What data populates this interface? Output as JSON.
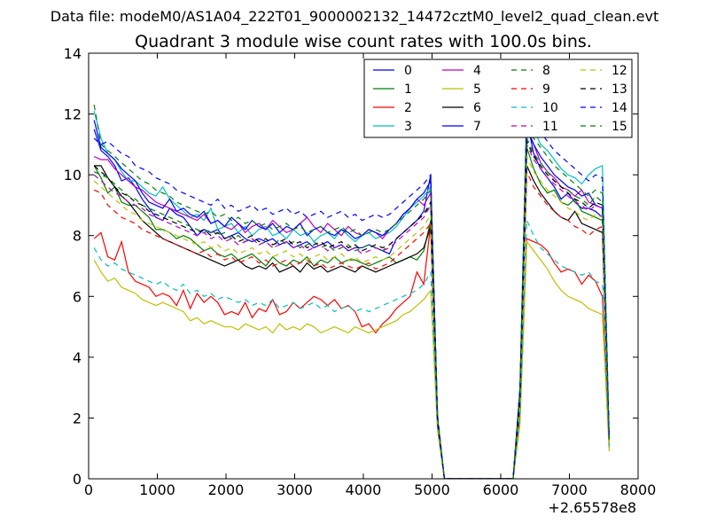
{
  "chart_data": {
    "type": "line",
    "suptitle": "Data file: modeM0/AS1A04_222T01_9000002132_14472cztM0_level2_quad_clean.evt",
    "title": "Quadrant 3 module wise count rates with 100.0s bins.",
    "xlabel": "",
    "ylabel": "",
    "x_offset_label": "+2.65578e8",
    "xlim": [
      0,
      8000
    ],
    "ylim": [
      0,
      14
    ],
    "xticks": [
      0,
      1000,
      2000,
      3000,
      4000,
      5000,
      6000,
      7000,
      8000
    ],
    "xtick_labels": [
      "0",
      "1000",
      "2000",
      "3000",
      "4000",
      "5000",
      "6000",
      "7000",
      "8000"
    ],
    "yticks": [
      0,
      2,
      4,
      6,
      8,
      10,
      12,
      14
    ],
    "ytick_labels": [
      "0",
      "2",
      "4",
      "6",
      "8",
      "10",
      "12",
      "14"
    ],
    "grid": false,
    "legend_position": "top-right",
    "legend_columns": 4,
    "x": [
      80,
      180,
      280,
      380,
      480,
      580,
      680,
      780,
      880,
      980,
      1080,
      1180,
      1280,
      1380,
      1480,
      1580,
      1680,
      1780,
      1880,
      1980,
      2080,
      2180,
      2280,
      2380,
      2480,
      2580,
      2680,
      2780,
      2880,
      2980,
      3080,
      3180,
      3280,
      3380,
      3480,
      3580,
      3680,
      3780,
      3880,
      3980,
      4080,
      4180,
      4280,
      4380,
      4480,
      4580,
      4680,
      4780,
      4880,
      4980,
      5080,
      5180,
      6180,
      6280,
      6380,
      6480,
      6580,
      6680,
      6780,
      6880,
      6980,
      7080,
      7180,
      7280,
      7380,
      7480,
      7580
    ],
    "series": [
      {
        "name": "0",
        "color": "#0000ff",
        "dash": "solid",
        "values": [
          11.5,
          10.8,
          10.6,
          10.3,
          9.8,
          9.9,
          9.6,
          9.2,
          8.9,
          8.6,
          8.5,
          8.9,
          8.7,
          8.6,
          8.3,
          8.0,
          8.2,
          8.1,
          8.2,
          7.9,
          8.0,
          8.1,
          7.9,
          7.8,
          7.9,
          7.8,
          7.9,
          7.7,
          7.8,
          7.6,
          7.7,
          7.8,
          7.6,
          7.7,
          7.8,
          7.6,
          7.7,
          7.5,
          7.6,
          7.6,
          7.7,
          7.6,
          7.5,
          7.4,
          7.9,
          8.1,
          8.3,
          8.5,
          8.8,
          10.0,
          1.9,
          0.0,
          0.0,
          2.8,
          11.8,
          10.7,
          10.2,
          9.9,
          9.6,
          9.2,
          9.4,
          9.1,
          8.9,
          8.9,
          8.8,
          8.6,
          1.2
        ]
      },
      {
        "name": "1",
        "color": "#008000",
        "dash": "solid",
        "values": [
          10.3,
          9.9,
          9.4,
          9.6,
          9.1,
          9.0,
          9.0,
          8.8,
          8.6,
          8.2,
          8.2,
          8.1,
          7.9,
          8.0,
          7.9,
          7.7,
          7.5,
          7.6,
          7.4,
          7.3,
          7.4,
          7.2,
          7.3,
          7.4,
          7.2,
          7.0,
          7.3,
          7.1,
          7.0,
          7.2,
          7.1,
          7.3,
          7.0,
          7.2,
          7.1,
          7.3,
          7.1,
          7.2,
          7.2,
          7.1,
          7.0,
          7.1,
          7.2,
          7.3,
          7.1,
          7.2,
          7.3,
          7.2,
          7.5,
          8.5,
          1.8,
          0.0,
          0.0,
          2.4,
          10.9,
          10.2,
          9.7,
          9.4,
          9.5,
          9.1,
          9.0,
          9.2,
          8.8,
          8.7,
          8.6,
          8.5,
          1.1
        ]
      },
      {
        "name": "2",
        "color": "#ff0000",
        "dash": "solid",
        "values": [
          7.9,
          8.1,
          7.3,
          7.2,
          7.8,
          6.8,
          6.5,
          6.4,
          6.3,
          6.0,
          6.1,
          6.0,
          5.7,
          6.2,
          5.6,
          6.1,
          5.8,
          6.0,
          5.8,
          5.4,
          5.5,
          5.4,
          5.8,
          5.3,
          5.6,
          5.5,
          5.9,
          5.4,
          5.5,
          5.8,
          5.6,
          5.8,
          6.0,
          5.9,
          5.7,
          5.9,
          5.6,
          5.7,
          5.5,
          5.0,
          5.1,
          4.8,
          5.1,
          5.3,
          5.6,
          5.8,
          6.0,
          6.8,
          6.4,
          8.4,
          1.7,
          0.0,
          0.0,
          2.0,
          7.9,
          7.8,
          7.7,
          7.5,
          7.1,
          6.8,
          6.9,
          6.8,
          6.4,
          6.7,
          6.5,
          6.0,
          1.0
        ]
      },
      {
        "name": "3",
        "color": "#00bfbf",
        "dash": "solid",
        "values": [
          12.1,
          11.2,
          10.7,
          10.5,
          10.1,
          9.8,
          9.8,
          9.6,
          9.4,
          9.3,
          9.6,
          9.2,
          9.0,
          8.8,
          8.6,
          8.7,
          8.5,
          8.9,
          8.2,
          8.3,
          8.4,
          8.1,
          8.3,
          8.0,
          8.2,
          8.3,
          8.0,
          8.1,
          7.9,
          8.2,
          8.0,
          8.1,
          7.8,
          8.0,
          8.1,
          7.9,
          8.2,
          8.0,
          7.8,
          8.0,
          8.1,
          7.9,
          8.0,
          8.1,
          8.3,
          8.6,
          8.9,
          9.1,
          9.3,
          9.6,
          2.0,
          0.0,
          0.0,
          3.0,
          12.4,
          11.5,
          11.0,
          10.8,
          10.5,
          10.2,
          10.0,
          9.9,
          9.7,
          10.0,
          10.2,
          10.3,
          1.3
        ]
      },
      {
        "name": "4",
        "color": "#bf00bf",
        "dash": "solid",
        "values": [
          10.6,
          10.5,
          10.5,
          10.2,
          10.0,
          9.8,
          9.6,
          9.5,
          9.3,
          9.1,
          9.0,
          8.9,
          8.8,
          8.7,
          8.6,
          8.5,
          8.7,
          8.4,
          8.5,
          8.3,
          8.2,
          8.4,
          8.1,
          8.3,
          8.4,
          8.2,
          8.5,
          8.3,
          8.1,
          8.2,
          8.4,
          8.6,
          8.3,
          8.1,
          8.4,
          8.2,
          8.0,
          8.3,
          8.1,
          8.0,
          8.2,
          8.1,
          7.9,
          8.2,
          8.4,
          8.7,
          8.9,
          9.2,
          9.0,
          9.4,
          1.9,
          0.0,
          0.0,
          2.6,
          11.6,
          11.0,
          10.4,
          10.1,
          9.9,
          9.6,
          9.5,
          9.3,
          9.5,
          9.1,
          9.0,
          8.9,
          1.2
        ]
      },
      {
        "name": "5",
        "color": "#bfbf00",
        "dash": "solid",
        "values": [
          7.2,
          6.8,
          6.5,
          6.6,
          6.3,
          6.2,
          6.1,
          5.9,
          5.8,
          5.7,
          5.8,
          5.7,
          5.6,
          5.5,
          5.2,
          5.3,
          5.1,
          5.2,
          5.1,
          5.0,
          5.0,
          4.9,
          5.1,
          5.0,
          4.9,
          5.0,
          4.8,
          5.1,
          4.9,
          5.0,
          4.9,
          5.1,
          5.0,
          4.8,
          4.9,
          5.0,
          4.9,
          4.8,
          5.0,
          4.9,
          4.8,
          4.9,
          5.0,
          5.1,
          5.2,
          5.4,
          5.5,
          5.7,
          5.9,
          6.2,
          1.6,
          0.0,
          0.0,
          1.8,
          7.8,
          7.5,
          7.2,
          6.9,
          6.5,
          6.2,
          6.0,
          5.9,
          5.8,
          5.6,
          5.5,
          5.4,
          0.9
        ]
      },
      {
        "name": "6",
        "color": "#000000",
        "dash": "solid",
        "values": [
          10.3,
          10.3,
          9.9,
          9.6,
          9.3,
          9.1,
          8.8,
          8.5,
          8.3,
          8.1,
          7.9,
          7.8,
          7.7,
          7.6,
          7.5,
          7.4,
          7.3,
          7.2,
          7.1,
          7.0,
          7.1,
          7.2,
          7.0,
          6.9,
          7.0,
          6.9,
          7.1,
          6.8,
          6.9,
          7.0,
          6.8,
          7.1,
          6.9,
          7.0,
          6.8,
          6.9,
          7.0,
          6.9,
          6.8,
          7.0,
          6.9,
          6.8,
          6.9,
          7.0,
          7.1,
          7.2,
          7.3,
          7.4,
          7.6,
          8.3,
          1.8,
          0.0,
          0.0,
          2.5,
          10.3,
          9.8,
          9.4,
          9.1,
          8.8,
          8.6,
          8.5,
          8.8,
          8.4,
          8.3,
          8.2,
          8.1,
          1.1
        ]
      },
      {
        "name": "7",
        "color": "#0000ff",
        "dash": "solid",
        "values": [
          11.8,
          10.9,
          10.7,
          10.5,
          10.2,
          10.0,
          9.8,
          9.4,
          9.1,
          9.0,
          8.9,
          9.2,
          8.8,
          8.9,
          8.7,
          8.6,
          8.8,
          8.4,
          8.5,
          8.3,
          8.6,
          8.4,
          8.2,
          8.5,
          8.3,
          8.2,
          8.4,
          8.1,
          8.3,
          8.2,
          8.4,
          8.0,
          8.2,
          8.3,
          8.1,
          8.0,
          8.2,
          8.1,
          7.9,
          8.0,
          8.2,
          8.1,
          8.0,
          8.2,
          8.4,
          8.7,
          8.9,
          9.2,
          9.4,
          9.8,
          2.0,
          0.0,
          0.0,
          2.9,
          11.5,
          11.0,
          10.6,
          10.3,
          10.0,
          9.8,
          9.6,
          9.5,
          9.3,
          9.4,
          9.0,
          8.9,
          1.2
        ]
      },
      {
        "name": "8",
        "color": "#008000",
        "dash": "dashed",
        "values": [
          10.1,
          10.0,
          9.9,
          9.7,
          9.5,
          9.3,
          9.2,
          9.0,
          8.9,
          8.8,
          8.7,
          8.6,
          8.5,
          8.4,
          8.3,
          8.2,
          8.1,
          8.2,
          8.0,
          8.1,
          7.9,
          8.0,
          7.8,
          7.9,
          7.7,
          7.8,
          7.6,
          7.9,
          7.7,
          7.8,
          7.6,
          7.7,
          7.8,
          7.6,
          7.7,
          7.5,
          7.6,
          7.7,
          7.5,
          7.6,
          7.7,
          7.6,
          7.5,
          7.7,
          7.9,
          8.1,
          8.3,
          8.5,
          8.7,
          9.0,
          1.9,
          0.0,
          0.0,
          2.6,
          11.2,
          10.7,
          10.4,
          10.1,
          9.8,
          9.6,
          9.5,
          9.3,
          9.2,
          9.0,
          9.3,
          9.1,
          1.2
        ]
      },
      {
        "name": "9",
        "color": "#ff0000",
        "dash": "dashed",
        "values": [
          9.5,
          9.4,
          9.0,
          8.8,
          8.6,
          8.5,
          8.4,
          8.2,
          8.1,
          8.0,
          7.9,
          7.8,
          7.7,
          7.6,
          7.5,
          7.4,
          7.5,
          7.3,
          7.4,
          7.2,
          7.3,
          7.1,
          7.2,
          7.3,
          7.1,
          7.2,
          7.0,
          7.1,
          7.2,
          7.0,
          7.1,
          7.2,
          7.0,
          7.1,
          6.9,
          7.0,
          7.1,
          7.0,
          6.9,
          7.0,
          7.1,
          6.9,
          7.0,
          7.1,
          7.3,
          7.5,
          7.7,
          7.9,
          8.1,
          8.4,
          1.8,
          0.0,
          0.0,
          2.3,
          10.1,
          9.6,
          9.3,
          9.0,
          8.8,
          8.6,
          8.5,
          8.3,
          8.2,
          8.0,
          8.2,
          8.3,
          1.1
        ]
      },
      {
        "name": "10",
        "color": "#00bfbf",
        "dash": "dashed",
        "values": [
          7.6,
          7.2,
          7.0,
          7.1,
          6.9,
          6.8,
          6.7,
          6.6,
          6.5,
          6.4,
          6.5,
          6.3,
          6.2,
          6.4,
          6.1,
          6.2,
          6.0,
          6.1,
          5.9,
          6.0,
          5.9,
          5.8,
          5.9,
          5.7,
          5.8,
          5.7,
          5.9,
          5.6,
          5.7,
          5.8,
          5.6,
          5.7,
          5.8,
          5.6,
          5.7,
          5.5,
          5.6,
          5.7,
          5.5,
          5.6,
          5.5,
          5.6,
          5.7,
          5.8,
          5.9,
          6.0,
          6.1,
          6.2,
          6.4,
          6.8,
          1.7,
          0.0,
          0.0,
          2.0,
          8.5,
          8.0,
          7.6,
          7.4,
          7.2,
          7.0,
          6.9,
          6.8,
          6.7,
          6.8,
          6.5,
          6.4,
          1.0
        ]
      },
      {
        "name": "11",
        "color": "#bf00bf",
        "dash": "dashed",
        "values": [
          10.0,
          9.8,
          9.6,
          9.4,
          9.3,
          9.1,
          9.0,
          8.9,
          8.7,
          8.6,
          8.5,
          8.4,
          8.3,
          8.2,
          8.1,
          8.0,
          8.1,
          7.9,
          8.0,
          7.8,
          7.9,
          7.7,
          7.8,
          7.9,
          7.7,
          7.8,
          7.6,
          7.7,
          7.8,
          7.6,
          7.7,
          7.5,
          7.6,
          7.7,
          7.5,
          7.6,
          7.7,
          7.5,
          7.6,
          7.4,
          7.5,
          7.6,
          7.5,
          7.6,
          7.8,
          8.0,
          8.2,
          8.4,
          8.6,
          9.0,
          1.9,
          0.0,
          0.0,
          2.6,
          11.0,
          10.5,
          10.2,
          9.9,
          9.7,
          9.5,
          9.3,
          9.1,
          9.0,
          8.8,
          9.0,
          8.9,
          1.2
        ]
      },
      {
        "name": "12",
        "color": "#bfbf00",
        "dash": "dashed",
        "values": [
          9.8,
          9.6,
          9.4,
          9.2,
          9.0,
          8.8,
          8.7,
          8.5,
          8.4,
          8.3,
          8.2,
          8.1,
          8.0,
          7.9,
          7.8,
          7.7,
          7.8,
          7.6,
          7.7,
          7.5,
          7.6,
          7.4,
          7.5,
          7.6,
          7.4,
          7.5,
          7.3,
          7.4,
          7.5,
          7.3,
          7.4,
          7.2,
          7.3,
          7.4,
          7.2,
          7.3,
          7.4,
          7.2,
          7.3,
          7.1,
          7.2,
          7.3,
          7.2,
          7.3,
          7.5,
          7.7,
          7.9,
          8.1,
          8.3,
          8.7,
          1.8,
          0.0,
          0.0,
          2.4,
          10.6,
          10.1,
          9.8,
          9.5,
          9.3,
          9.1,
          8.9,
          8.8,
          8.6,
          8.5,
          8.7,
          8.6,
          1.1
        ]
      },
      {
        "name": "13",
        "color": "#000000",
        "dash": "dashed",
        "values": [
          10.3,
          10.1,
          9.9,
          9.6,
          9.4,
          9.3,
          9.1,
          9.0,
          8.8,
          8.7,
          8.6,
          8.5,
          8.4,
          8.3,
          8.2,
          8.1,
          8.2,
          8.0,
          8.1,
          7.9,
          8.0,
          7.8,
          7.9,
          8.0,
          7.8,
          7.9,
          7.7,
          7.8,
          7.9,
          7.7,
          7.8,
          7.6,
          7.7,
          7.8,
          7.6,
          7.7,
          7.8,
          7.6,
          7.7,
          7.5,
          7.6,
          7.7,
          7.6,
          7.7,
          7.9,
          8.1,
          8.3,
          8.5,
          8.7,
          9.1,
          1.9,
          0.0,
          0.0,
          2.6,
          11.1,
          10.6,
          10.3,
          10.0,
          9.8,
          9.6,
          9.4,
          9.2,
          9.1,
          8.9,
          9.1,
          9.0,
          1.2
        ]
      },
      {
        "name": "14",
        "color": "#0000ff",
        "dash": "dashed",
        "values": [
          11.2,
          11.0,
          11.1,
          10.9,
          10.7,
          10.6,
          10.3,
          10.2,
          10.1,
          9.9,
          9.8,
          9.7,
          9.5,
          9.4,
          9.3,
          9.2,
          9.1,
          9.0,
          9.2,
          8.9,
          9.0,
          8.8,
          8.9,
          9.0,
          8.8,
          8.9,
          8.7,
          8.8,
          8.9,
          8.7,
          8.8,
          8.6,
          8.7,
          8.8,
          8.6,
          8.7,
          8.8,
          8.6,
          8.7,
          8.5,
          8.6,
          8.7,
          8.6,
          8.7,
          8.9,
          9.1,
          9.3,
          9.5,
          9.7,
          10.0,
          2.1,
          0.0,
          0.0,
          3.0,
          12.2,
          11.7,
          11.4,
          11.1,
          10.8,
          10.6,
          10.4,
          10.2,
          10.0,
          9.8,
          10.0,
          9.9,
          1.3
        ]
      },
      {
        "name": "15",
        "color": "#008000",
        "dash": "dashed",
        "values": [
          12.3,
          11.0,
          10.8,
          10.6,
          10.4,
          10.2,
          10.0,
          9.8,
          9.7,
          9.5,
          9.4,
          9.3,
          9.1,
          9.0,
          8.9,
          8.8,
          8.7,
          8.8,
          8.6,
          8.7,
          8.5,
          8.6,
          8.4,
          8.5,
          8.3,
          8.4,
          8.2,
          8.3,
          8.4,
          8.2,
          8.3,
          8.1,
          8.2,
          8.3,
          8.1,
          8.2,
          8.3,
          8.1,
          8.2,
          8.0,
          8.1,
          8.2,
          8.1,
          8.2,
          8.4,
          8.6,
          8.8,
          9.0,
          9.2,
          9.5,
          2.0,
          0.0,
          0.0,
          2.8,
          11.7,
          11.2,
          10.9,
          10.6,
          10.3,
          10.1,
          9.9,
          9.7,
          9.5,
          9.3,
          9.5,
          9.4,
          1.2
        ]
      }
    ]
  }
}
